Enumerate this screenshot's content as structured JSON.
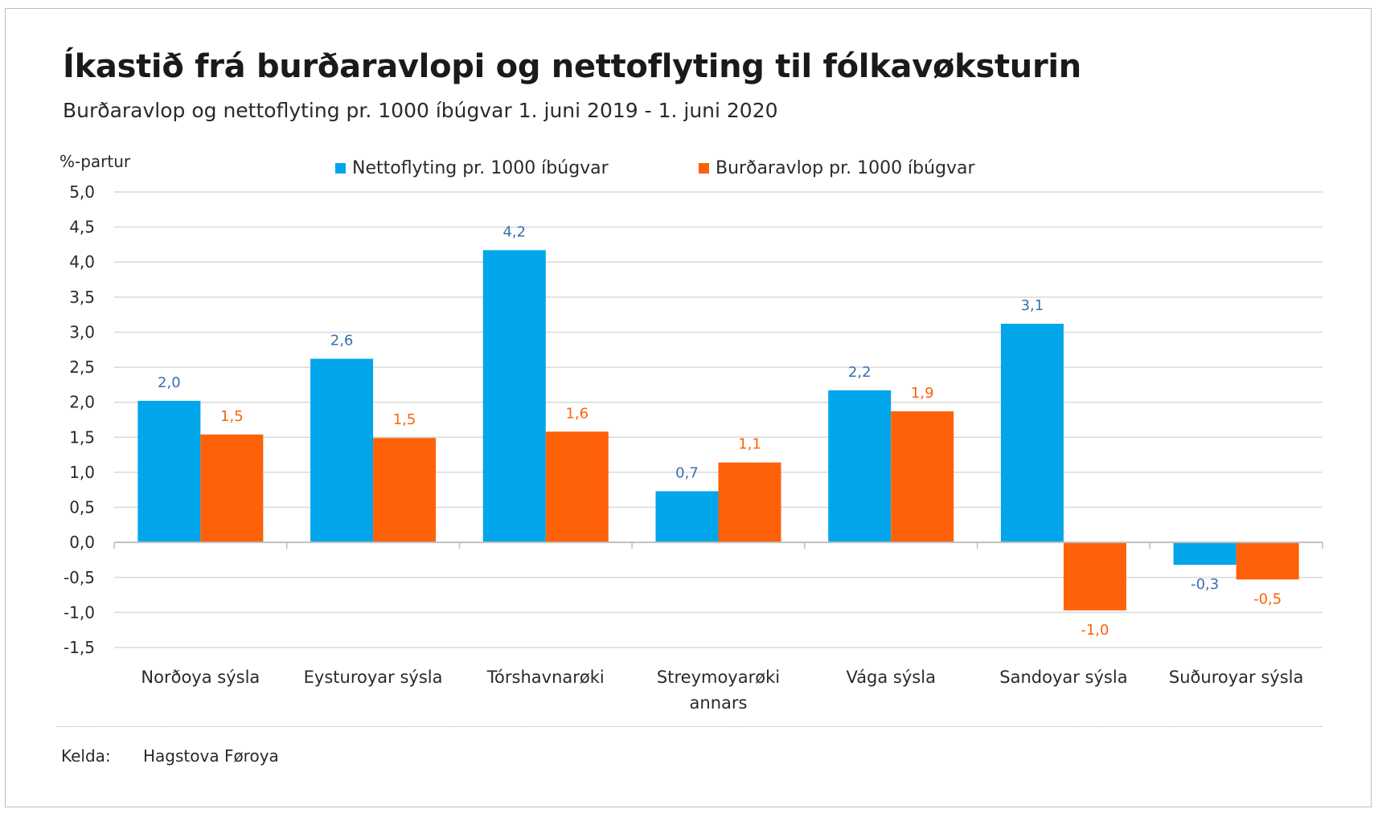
{
  "chart_data": {
    "type": "bar",
    "title": "Íkastið frá burðaravlopi og nettoflyting til fólkavøksturin",
    "subtitle": "Burðaravlop og nettoflyting pr. 1000 íbúgvar 1. juni 2019 - 1. juni 2020",
    "ylabel": "%-partur",
    "xlabel": "",
    "ylim": [
      -1.5,
      5.0
    ],
    "ytick_step": 0.5,
    "ytick_labels": [
      "5,0",
      "4,5",
      "4,0",
      "3,5",
      "3,0",
      "2,5",
      "2,0",
      "1,5",
      "1,0",
      "0,5",
      "0,0",
      "-0,5",
      "-1,0",
      "-1,5"
    ],
    "grid": true,
    "legend_position": "top",
    "categories": [
      [
        "Norðoya sýsla"
      ],
      [
        "Eysturoyar sýsla"
      ],
      [
        "Tórshavnarøki"
      ],
      [
        "Streymoyarøki",
        "annars"
      ],
      [
        "Vága sýsla"
      ],
      [
        "Sandoyar sýsla"
      ],
      [
        "Suðuroyar sýsla"
      ]
    ],
    "series": [
      {
        "name": "Nettoflyting pr. 1000 íbúgvar",
        "color": "#00a6e9",
        "label_color": "#3a6fb0",
        "values": [
          2.02,
          2.62,
          4.17,
          0.73,
          2.17,
          3.12,
          -0.32
        ],
        "labels": [
          "2,0",
          "2,6",
          "4,2",
          "0,7",
          "2,2",
          "3,1",
          "-0,3"
        ]
      },
      {
        "name": "Burðaravlop pr. 1000 íbúgvar",
        "color": "#ff6109",
        "label_color": "#ff6109",
        "values": [
          1.54,
          1.49,
          1.58,
          1.14,
          1.87,
          -0.97,
          -0.53
        ],
        "labels": [
          "1,5",
          "1,5",
          "1,6",
          "1,1",
          "1,9",
          "-1,0",
          "-0,5"
        ]
      }
    ]
  },
  "source": {
    "label": "Kelda:",
    "value": "Hagstova Føroya"
  }
}
